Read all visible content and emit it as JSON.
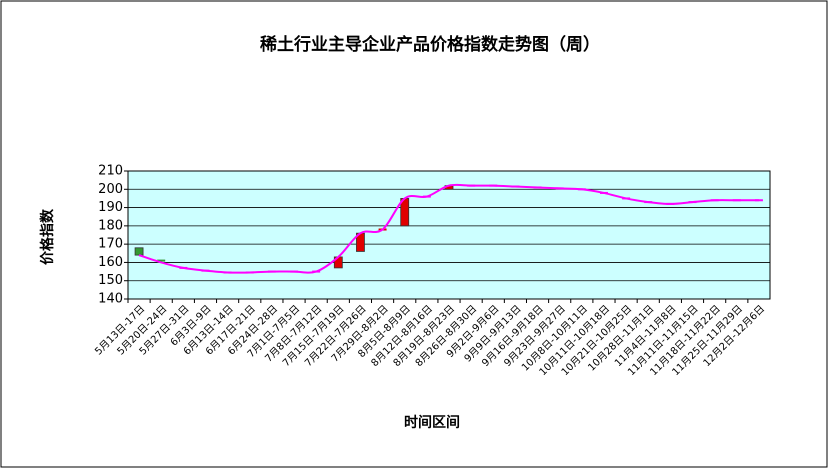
{
  "chart_data": {
    "type": "candlestick",
    "title": "稀土行业主导企业产品价格指数走势图（周）",
    "x_label": "时间区间",
    "y_label": "价格指数",
    "categories": [
      "5月13日-17日",
      "5月20日-24日",
      "5月27日-31日",
      "6月3日-9日",
      "6月13日-14日",
      "6月17日-21日",
      "6月24日-28日",
      "7月1日-7月5日",
      "7月8日-7月12日",
      "7月15日-7月19日",
      "7月22日-7月26日",
      "7月29日-8月2日",
      "8月5日-8月9日",
      "8月12日-8月16日",
      "8月19日-8月23日",
      "8月26日-8月30日",
      "9月2日-9月6日",
      "9月9日-9月13日",
      "9月16日-9月18日",
      "9月23日-9月27日",
      "10月8日-10月11日",
      "10月11日-10月18日",
      "10月21日-10月25日",
      "10月28日-11月1日",
      "11月4日-11月8日",
      "11月11日-11月15日",
      "11月18日-11月22日",
      "11月25日-11月29日",
      "12月2日-12月6日"
    ],
    "open": [
      168,
      161,
      157,
      155.5,
      154.5,
      154.5,
      155,
      155,
      155,
      157,
      166,
      177,
      180,
      196,
      200,
      202,
      202,
      201.5,
      201,
      200.5,
      200,
      198,
      195,
      193,
      192,
      193,
      194,
      194,
      194
    ],
    "close": [
      164,
      160,
      157,
      155.5,
      154.5,
      154.5,
      155,
      155,
      155,
      163,
      176,
      178,
      195,
      196,
      202,
      202,
      202,
      201.5,
      201,
      200.5,
      200,
      198,
      195,
      193,
      192,
      193,
      194,
      194,
      194
    ],
    "up_color": "#e00000",
    "down_color": "#339933",
    "line_color": "#ff00ff",
    "plot_bg": "#ccffff",
    "ylim": [
      140,
      210
    ],
    "yticks": [
      140,
      150,
      160,
      170,
      180,
      190,
      200,
      210
    ],
    "grid": true
  }
}
